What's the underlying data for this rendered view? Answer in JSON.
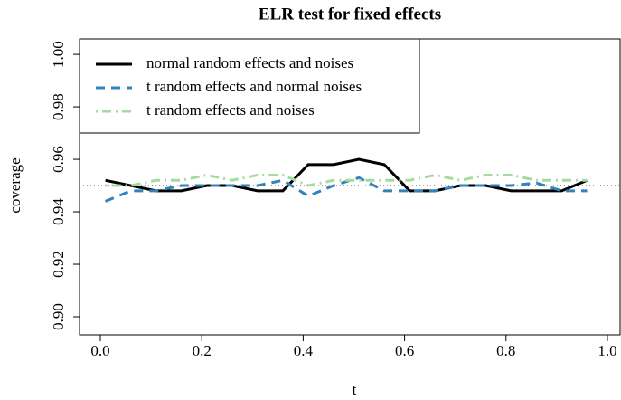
{
  "chart_data": {
    "type": "line",
    "title": "ELR test for fixed effects",
    "x_label": "t",
    "y_label": "coverage",
    "x": [
      0.01,
      0.06,
      0.11,
      0.16,
      0.21,
      0.26,
      0.31,
      0.36,
      0.41,
      0.46,
      0.51,
      0.56,
      0.61,
      0.66,
      0.71,
      0.76,
      0.81,
      0.86,
      0.91,
      0.96
    ],
    "series": [
      {
        "name": "normal random effects and noises",
        "color": "#000000",
        "linestyle": "solid",
        "values": [
          0.952,
          0.95,
          0.948,
          0.948,
          0.95,
          0.95,
          0.948,
          0.948,
          0.958,
          0.958,
          0.96,
          0.958,
          0.948,
          0.948,
          0.95,
          0.95,
          0.948,
          0.948,
          0.948,
          0.952
        ]
      },
      {
        "name": "t random effects and normal noises",
        "color": "#3182bd",
        "linestyle": "dashed",
        "values": [
          0.944,
          0.948,
          0.948,
          0.95,
          0.95,
          0.95,
          0.95,
          0.952,
          0.946,
          0.95,
          0.953,
          0.948,
          0.948,
          0.948,
          0.95,
          0.95,
          0.95,
          0.951,
          0.948,
          0.948
        ]
      },
      {
        "name": "t random effects and noises",
        "color": "#a6dba0",
        "linestyle": "dotdash",
        "values": [
          0.95,
          0.95,
          0.952,
          0.952,
          0.954,
          0.952,
          0.954,
          0.954,
          0.95,
          0.952,
          0.952,
          0.952,
          0.952,
          0.954,
          0.952,
          0.954,
          0.954,
          0.952,
          0.952,
          0.952
        ]
      }
    ],
    "reference_line": 0.95,
    "xlim": [
      -0.041,
      1.025
    ],
    "ylim": [
      0.8931,
      1.0059
    ],
    "xticks": [
      {
        "value": 0,
        "label": "0.0"
      },
      0.2,
      0.4,
      0.6,
      0.8,
      {
        "value": 1,
        "label": "1.0"
      }
    ],
    "yticks": [
      {
        "value": 0.9,
        "label": "0.90"
      },
      0.92,
      0.94,
      0.96,
      0.98,
      {
        "value": 1,
        "label": "1.00"
      }
    ],
    "legend": "top-left"
  }
}
